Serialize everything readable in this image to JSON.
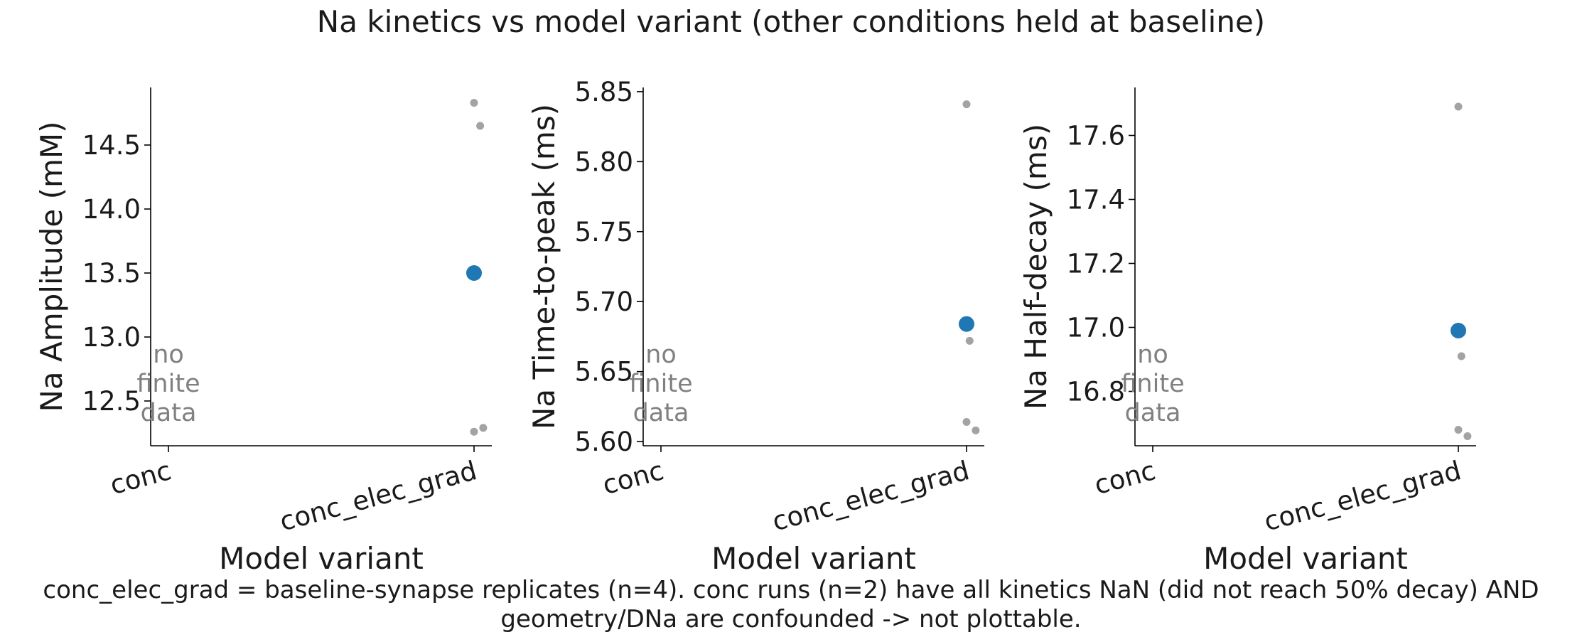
{
  "figure": {
    "title": "Na kinetics vs model variant (other conditions held at baseline)",
    "caption_line1": "conc_elec_grad = baseline-synapse replicates (n=4). conc runs (n=2) have all kinetics NaN (did not reach 50% decay) AND",
    "caption_line2": "geometry/DNa are confounded -> not plottable."
  },
  "colors": {
    "mean_marker": "#1f77b4",
    "replicate_marker": "#999999",
    "no_data_text": "#808080"
  },
  "chart_data": [
    {
      "type": "scatter",
      "xlabel": "Model variant",
      "ylabel": "Na Amplitude (mM)",
      "categories": [
        "conc",
        "conc_elec_grad"
      ],
      "ylim": [
        12.15,
        14.95
      ],
      "yticks": [
        12.5,
        13.0,
        13.5,
        14.0,
        14.5
      ],
      "ytick_labels": [
        "12.5",
        "13.0",
        "13.5",
        "14.0",
        "14.5"
      ],
      "no_data_text": [
        "no",
        "finite",
        "data"
      ],
      "replicates": [
        {
          "category": "conc_elec_grad",
          "jitter": 0.0,
          "y": 14.83
        },
        {
          "category": "conc_elec_grad",
          "jitter": 0.02,
          "y": 14.65
        },
        {
          "category": "conc_elec_grad",
          "jitter": 0.0,
          "y": 12.26
        },
        {
          "category": "conc_elec_grad",
          "jitter": 0.03,
          "y": 12.29
        }
      ],
      "mean": {
        "category": "conc_elec_grad",
        "y": 13.5
      }
    },
    {
      "type": "scatter",
      "xlabel": "Model variant",
      "ylabel": "Na Time-to-peak (ms)",
      "categories": [
        "conc",
        "conc_elec_grad"
      ],
      "ylim": [
        5.597,
        5.853
      ],
      "yticks": [
        5.6,
        5.65,
        5.7,
        5.75,
        5.8,
        5.85
      ],
      "ytick_labels": [
        "5.60",
        "5.65",
        "5.70",
        "5.75",
        "5.80",
        "5.85"
      ],
      "no_data_text": [
        "no",
        "finite",
        "data"
      ],
      "replicates": [
        {
          "category": "conc_elec_grad",
          "jitter": 0.0,
          "y": 5.841
        },
        {
          "category": "conc_elec_grad",
          "jitter": 0.01,
          "y": 5.672
        },
        {
          "category": "conc_elec_grad",
          "jitter": 0.0,
          "y": 5.614
        },
        {
          "category": "conc_elec_grad",
          "jitter": 0.03,
          "y": 5.608
        }
      ],
      "mean": {
        "category": "conc_elec_grad",
        "y": 5.684
      }
    },
    {
      "type": "scatter",
      "xlabel": "Model variant",
      "ylabel": "Na Half-decay (ms)",
      "categories": [
        "conc",
        "conc_elec_grad"
      ],
      "ylim": [
        16.63,
        17.75
      ],
      "yticks": [
        16.8,
        17.0,
        17.2,
        17.4,
        17.6
      ],
      "ytick_labels": [
        "16.8",
        "17.0",
        "17.2",
        "17.4",
        "17.6"
      ],
      "no_data_text": [
        "no",
        "finite",
        "data"
      ],
      "replicates": [
        {
          "category": "conc_elec_grad",
          "jitter": 0.0,
          "y": 17.69
        },
        {
          "category": "conc_elec_grad",
          "jitter": 0.01,
          "y": 16.91
        },
        {
          "category": "conc_elec_grad",
          "jitter": 0.0,
          "y": 16.68
        },
        {
          "category": "conc_elec_grad",
          "jitter": 0.03,
          "y": 16.66
        }
      ],
      "mean": {
        "category": "conc_elec_grad",
        "y": 16.99
      }
    }
  ]
}
